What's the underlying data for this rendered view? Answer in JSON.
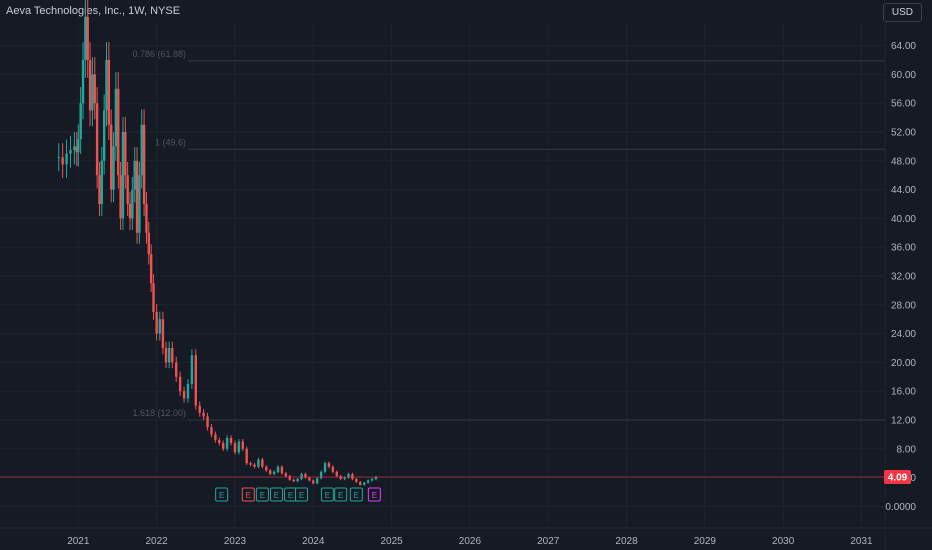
{
  "header": {
    "title": "Aeva Technologies, Inc., 1W, NYSE",
    "currency": "USD"
  },
  "colors": {
    "up": "#26a69a",
    "down": "#ef5350",
    "current_price": "#f23645",
    "earnings_past": "#26a69a",
    "earnings_down": "#ef5350",
    "earnings_future": "#e040fb"
  },
  "chart_data": {
    "type": "line",
    "y_tick_labels": [
      "64.00",
      "60.00",
      "56.00",
      "52.00",
      "48.00",
      "44.00",
      "40.00",
      "36.00",
      "32.00",
      "28.00",
      "24.00",
      "20.00",
      "16.00",
      "12.00",
      "8.00",
      "4.00",
      "0.0000"
    ],
    "x_tick_labels": [
      "2021",
      "2022",
      "2023",
      "2024",
      "2025",
      "2026",
      "2027",
      "2028",
      "2029",
      "2030",
      "2031"
    ],
    "ylim": [
      -3,
      67
    ],
    "xlim": [
      2020.0,
      2031.3
    ],
    "grid": true,
    "current_price": 4.09,
    "current_price_label": "4.09",
    "fib_levels": [
      {
        "label": "0.786 (61.88)",
        "value": 61.88
      },
      {
        "label": "1 (49.6)",
        "value": 49.6
      },
      {
        "label": "1.618 (12.00)",
        "value": 12.0
      }
    ],
    "series": [
      {
        "x": [
          2020.75,
          2020.8,
          2020.85,
          2020.9,
          2020.95,
          2020.98,
          2021.0,
          2021.03,
          2021.06,
          2021.09,
          2021.12,
          2021.15,
          2021.18,
          2021.21,
          2021.24,
          2021.27,
          2021.3,
          2021.33,
          2021.36,
          2021.39,
          2021.42,
          2021.45,
          2021.48,
          2021.51,
          2021.54,
          2021.57,
          2021.6,
          2021.63,
          2021.66,
          2021.69,
          2021.72,
          2021.75,
          2021.78,
          2021.81,
          2021.84,
          2021.87,
          2021.9,
          2021.93,
          2021.96,
          2022.0,
          2022.04,
          2022.08,
          2022.12,
          2022.16,
          2022.2,
          2022.25,
          2022.3,
          2022.35,
          2022.4,
          2022.45,
          2022.5,
          2022.55,
          2022.6,
          2022.65,
          2022.7,
          2022.75,
          2022.8,
          2022.85,
          2022.9,
          2022.95,
          2023.0,
          2023.05,
          2023.1,
          2023.15,
          2023.2,
          2023.25,
          2023.3,
          2023.35,
          2023.4,
          2023.45,
          2023.5,
          2023.55,
          2023.6,
          2023.65,
          2023.7,
          2023.75,
          2023.8,
          2023.85,
          2023.9,
          2023.95,
          2024.0,
          2024.05,
          2024.1,
          2024.15,
          2024.2,
          2024.25,
          2024.3,
          2024.35,
          2024.4,
          2024.45,
          2024.5,
          2024.55,
          2024.6,
          2024.65,
          2024.7,
          2024.75,
          2024.8
        ],
        "values": [
          48.5,
          47.5,
          49.0,
          49.5,
          50.0,
          49.2,
          51.0,
          56.0,
          62.0,
          68.0,
          62.0,
          55.0,
          60.0,
          56.0,
          46.0,
          42.0,
          48.0,
          55.0,
          62.0,
          53.0,
          44.0,
          50.0,
          58.0,
          46.0,
          40.0,
          52.0,
          46.0,
          42.0,
          40.0,
          44.0,
          48.0,
          38.0,
          46.0,
          53.0,
          42.0,
          38.0,
          35.0,
          31.0,
          27.0,
          24.0,
          26.0,
          22.0,
          20.0,
          22.0,
          20.0,
          18.0,
          16.0,
          15.0,
          17.0,
          21.0,
          14.0,
          13.0,
          12.5,
          11.0,
          10.0,
          9.2,
          8.8,
          8.0,
          9.5,
          8.8,
          7.5,
          9.0,
          8.0,
          6.0,
          5.8,
          5.5,
          6.5,
          5.5,
          5.0,
          4.5,
          4.8,
          5.5,
          4.6,
          4.2,
          3.7,
          3.5,
          3.8,
          4.5,
          4.0,
          3.6,
          3.2,
          3.9,
          4.8,
          6.0,
          5.5,
          4.8,
          4.2,
          3.8,
          4.0,
          4.5,
          3.8,
          3.4,
          3.0,
          3.3,
          3.6,
          3.8,
          4.09
        ]
      }
    ],
    "earnings_markers": [
      {
        "x": 2022.83,
        "label": "E",
        "color": "#26a69a"
      },
      {
        "x": 2023.17,
        "label": "E",
        "color": "#ef5350"
      },
      {
        "x": 2023.35,
        "label": "E",
        "color": "#26a69a"
      },
      {
        "x": 2023.53,
        "label": "E",
        "color": "#26a69a"
      },
      {
        "x": 2023.71,
        "label": "E",
        "color": "#26a69a"
      },
      {
        "x": 2023.85,
        "label": "E",
        "color": "#26a69a"
      },
      {
        "x": 2024.18,
        "label": "E",
        "color": "#26a69a"
      },
      {
        "x": 2024.35,
        "label": "E",
        "color": "#26a69a"
      },
      {
        "x": 2024.55,
        "label": "E",
        "color": "#26a69a"
      },
      {
        "x": 2024.78,
        "label": "E",
        "color": "#e040fb"
      }
    ]
  }
}
